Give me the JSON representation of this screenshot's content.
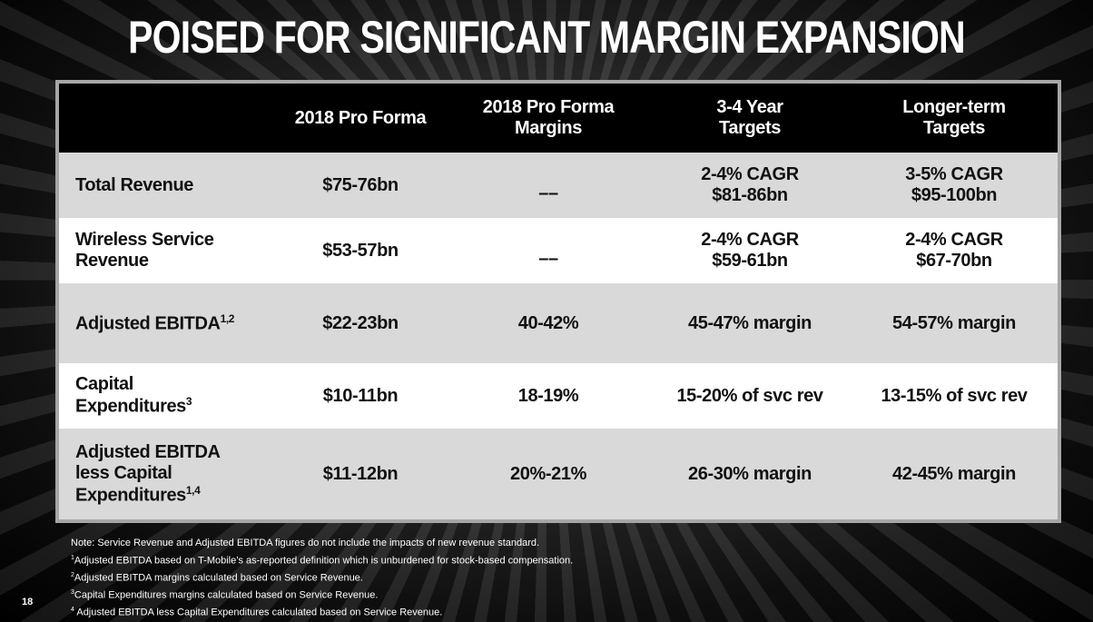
{
  "title": "POISED FOR SIGNIFICANT MARGIN EXPANSION",
  "table": {
    "header": [
      "2018 Pro Forma",
      [
        "2018 Pro Forma",
        "Margins"
      ],
      [
        "3-4 Year",
        "Targets"
      ],
      [
        "Longer-term",
        "Targets"
      ]
    ],
    "rows": [
      {
        "label": [
          "Total Revenue"
        ],
        "cells": [
          [
            "$75-76bn"
          ],
          [
            "––"
          ],
          [
            "2-4% CAGR",
            "$81-86bn"
          ],
          [
            "3-5% CAGR",
            "$95-100bn"
          ]
        ]
      },
      {
        "label": [
          "Wireless Service",
          "Revenue"
        ],
        "cells": [
          [
            "$53-57bn"
          ],
          [
            "––"
          ],
          [
            "2-4% CAGR",
            "$59-61bn"
          ],
          [
            "2-4% CAGR",
            "$67-70bn"
          ]
        ]
      },
      {
        "label": [
          "Adjusted EBITDA"
        ],
        "sup": "1,2",
        "cells": [
          [
            "$22-23bn"
          ],
          [
            "40-42%"
          ],
          [
            "45-47% margin"
          ],
          [
            "54-57% margin"
          ]
        ]
      },
      {
        "label": [
          "Capital",
          "Expenditures"
        ],
        "sup": "3",
        "cells": [
          [
            "$10-11bn"
          ],
          [
            "18-19%"
          ],
          [
            "15-20% of svc rev"
          ],
          [
            "13-15% of svc rev"
          ]
        ]
      },
      {
        "label": [
          "Adjusted EBITDA",
          "less Capital",
          "Expenditures"
        ],
        "sup": "1,4",
        "cells": [
          [
            "$11-12bn"
          ],
          [
            "20%-21%"
          ],
          [
            "26-30% margin"
          ],
          [
            "42-45% margin"
          ]
        ]
      }
    ]
  },
  "notes": {
    "note": "Note: Service Revenue and Adjusted EBITDA figures do not include the impacts of new revenue standard.",
    "footnotes": [
      {
        "sup": "1",
        "text": "Adjusted EBITDA based on T-Mobile’s as-reported definition which is unburdened for stock-based compensation."
      },
      {
        "sup": "2",
        "text": "Adjusted EBITDA margins calculated based on Service Revenue."
      },
      {
        "sup": "3",
        "text": "Capital Expenditures margins calculated based on Service Revenue."
      },
      {
        "sup": "4",
        "text": " Adjusted EBITDA less Capital Expenditures calculated based on Service Revenue."
      }
    ]
  },
  "page_number": "18"
}
